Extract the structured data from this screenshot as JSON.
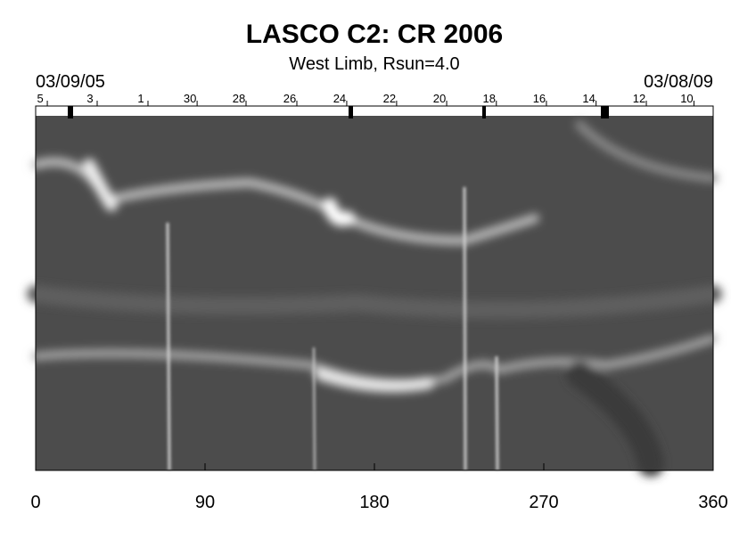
{
  "chart_data": {
    "type": "image",
    "title": "LASCO C2: CR 2006",
    "subtitle": "West Limb, Rsun=4.0",
    "start_date": "03/09/05",
    "end_date": "03/08/09",
    "xlim": [
      0,
      360
    ],
    "xticks": [
      0,
      90,
      180,
      270,
      360
    ],
    "top_ticks": [
      {
        "value": 2.4,
        "label": "5"
      },
      {
        "value": 28.9,
        "label": "3"
      },
      {
        "value": 55.9,
        "label": "1"
      },
      {
        "value": 82,
        "label": "30"
      },
      {
        "value": 108,
        "label": "28"
      },
      {
        "value": 135,
        "label": "26"
      },
      {
        "value": 161.5,
        "label": "24"
      },
      {
        "value": 188,
        "label": "22"
      },
      {
        "value": 214.6,
        "label": "20"
      },
      {
        "value": 241,
        "label": "18"
      },
      {
        "value": 267.6,
        "label": "16"
      },
      {
        "value": 294,
        "label": "14"
      },
      {
        "value": 320.7,
        "label": "12"
      },
      {
        "value": 346,
        "label": "10"
      }
    ]
  }
}
